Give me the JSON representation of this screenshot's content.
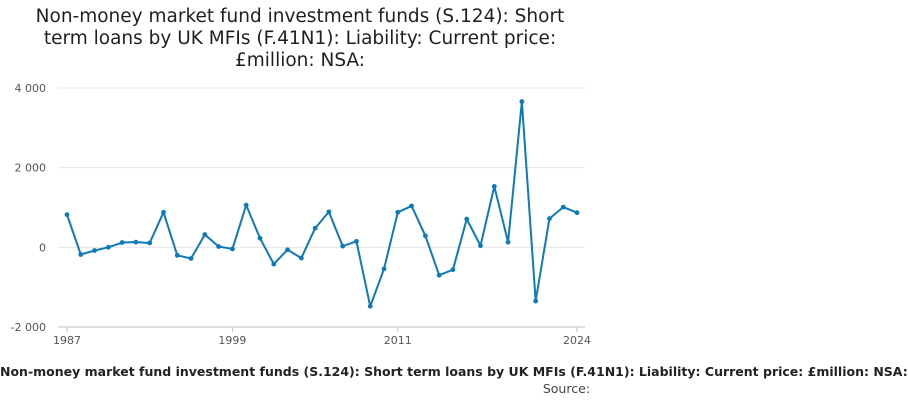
{
  "title_lines": [
    "Non-money market fund investment funds (S.124): Short",
    "term loans by UK MFIs (F.41N1): Liability: Current price:",
    "£million: NSA:"
  ],
  "footer": {
    "legend_text": "Non-money market fund investment funds (S.124): Short term loans by UK MFIs (F.41N1): Liability: Current price: £million: NSA:",
    "source_label": "Source:"
  },
  "colors": {
    "series": "#0f7ab8",
    "grid": "#e6e6e6",
    "axis": "#bfbfbf"
  },
  "chart_data": {
    "type": "line",
    "title": "Non-money market fund investment funds (S.124): Short term loans by UK MFIs (F.41N1): Liability: Current price: £million: NSA:",
    "xlabel": "",
    "ylabel": "",
    "xlim": [
      1987,
      2024
    ],
    "ylim": [
      -2000,
      4000
    ],
    "x_ticks": [
      1987,
      1999,
      2011,
      2024
    ],
    "y_ticks": [
      -2000,
      0,
      2000,
      4000
    ],
    "y_tick_labels": [
      "-2 000",
      "0",
      "2 000",
      "4 000"
    ],
    "grid": true,
    "legend": "bottom",
    "series": [
      {
        "name": "Non-money market fund investment funds (S.124): Short term loans by UK MFIs (F.41N1): Liability: Current price: £million: NSA:",
        "x": [
          1987,
          1988,
          1989,
          1990,
          1991,
          1992,
          1993,
          1994,
          1995,
          1996,
          1997,
          1998,
          1999,
          2000,
          2001,
          2002,
          2003,
          2004,
          2005,
          2006,
          2007,
          2008,
          2009,
          2010,
          2011,
          2012,
          2013,
          2014,
          2015,
          2016,
          2017,
          2018,
          2019,
          2020,
          2021,
          2022,
          2023,
          2024
        ],
        "y": [
          820,
          -180,
          -80,
          0,
          120,
          130,
          110,
          880,
          -200,
          -280,
          320,
          20,
          -40,
          1060,
          230,
          -420,
          -60,
          -270,
          480,
          890,
          30,
          150,
          -1480,
          -540,
          880,
          1040,
          290,
          -700,
          -560,
          710,
          40,
          1530,
          130,
          3660,
          -1350,
          720,
          1010,
          870
        ]
      }
    ]
  }
}
